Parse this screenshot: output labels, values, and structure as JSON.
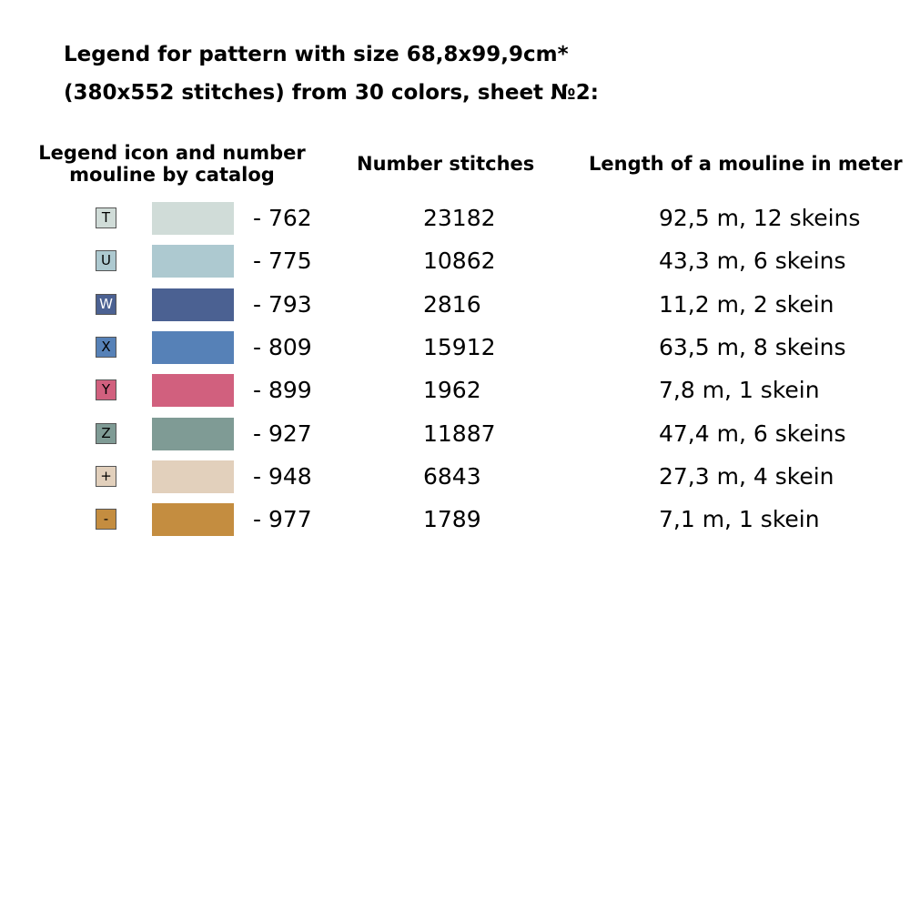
{
  "title": {
    "line1": "Legend for pattern with size 68,8x99,9cm*",
    "line2": "(380x552 stitches) from 30 colors, sheet №2:"
  },
  "headers": {
    "legend_line1": "Legend icon and number",
    "legend_line2": "mouline by catalog",
    "stitches": "Number stitches",
    "length": "Length of a mouline in meter"
  },
  "rows": [
    {
      "symbol": "T",
      "symbol_bg": "#d0dcd8",
      "symbol_fg": "#000000",
      "color": "#d0dcd8",
      "code": "- 762",
      "stitches": "23182",
      "length": "92,5 m, 12 skeins"
    },
    {
      "symbol": "U",
      "symbol_bg": "#adc9d0",
      "symbol_fg": "#000000",
      "color": "#adc9d0",
      "code": "- 775",
      "stitches": "10862",
      "length": "43,3 m, 6 skeins"
    },
    {
      "symbol": "W",
      "symbol_bg": "#4b6192",
      "symbol_fg": "#ffffff",
      "color": "#4b6192",
      "code": "- 793",
      "stitches": "2816",
      "length": "11,2 m, 2 skein"
    },
    {
      "symbol": "X",
      "symbol_bg": "#5681b7",
      "symbol_fg": "#000000",
      "color": "#5681b7",
      "code": "- 809",
      "stitches": "15912",
      "length": "63,5 m, 8 skeins"
    },
    {
      "symbol": "Y",
      "symbol_bg": "#d1607e",
      "symbol_fg": "#000000",
      "color": "#d1607e",
      "code": "- 899",
      "stitches": "1962",
      "length": "7,8 m, 1 skein"
    },
    {
      "symbol": "Z",
      "symbol_bg": "#7f9b95",
      "symbol_fg": "#000000",
      "color": "#7f9b95",
      "code": "- 927",
      "stitches": "11887",
      "length": "47,4 m, 6 skeins"
    },
    {
      "symbol": "+",
      "symbol_bg": "#e2d0bc",
      "symbol_fg": "#000000",
      "color": "#e2d0bc",
      "code": "- 948",
      "stitches": "6843",
      "length": "27,3 m, 4 skein"
    },
    {
      "symbol": "-",
      "symbol_bg": "#c48d40",
      "symbol_fg": "#000000",
      "color": "#c48d40",
      "code": "- 977",
      "stitches": "1789",
      "length": "7,1 m, 1 skein"
    }
  ]
}
